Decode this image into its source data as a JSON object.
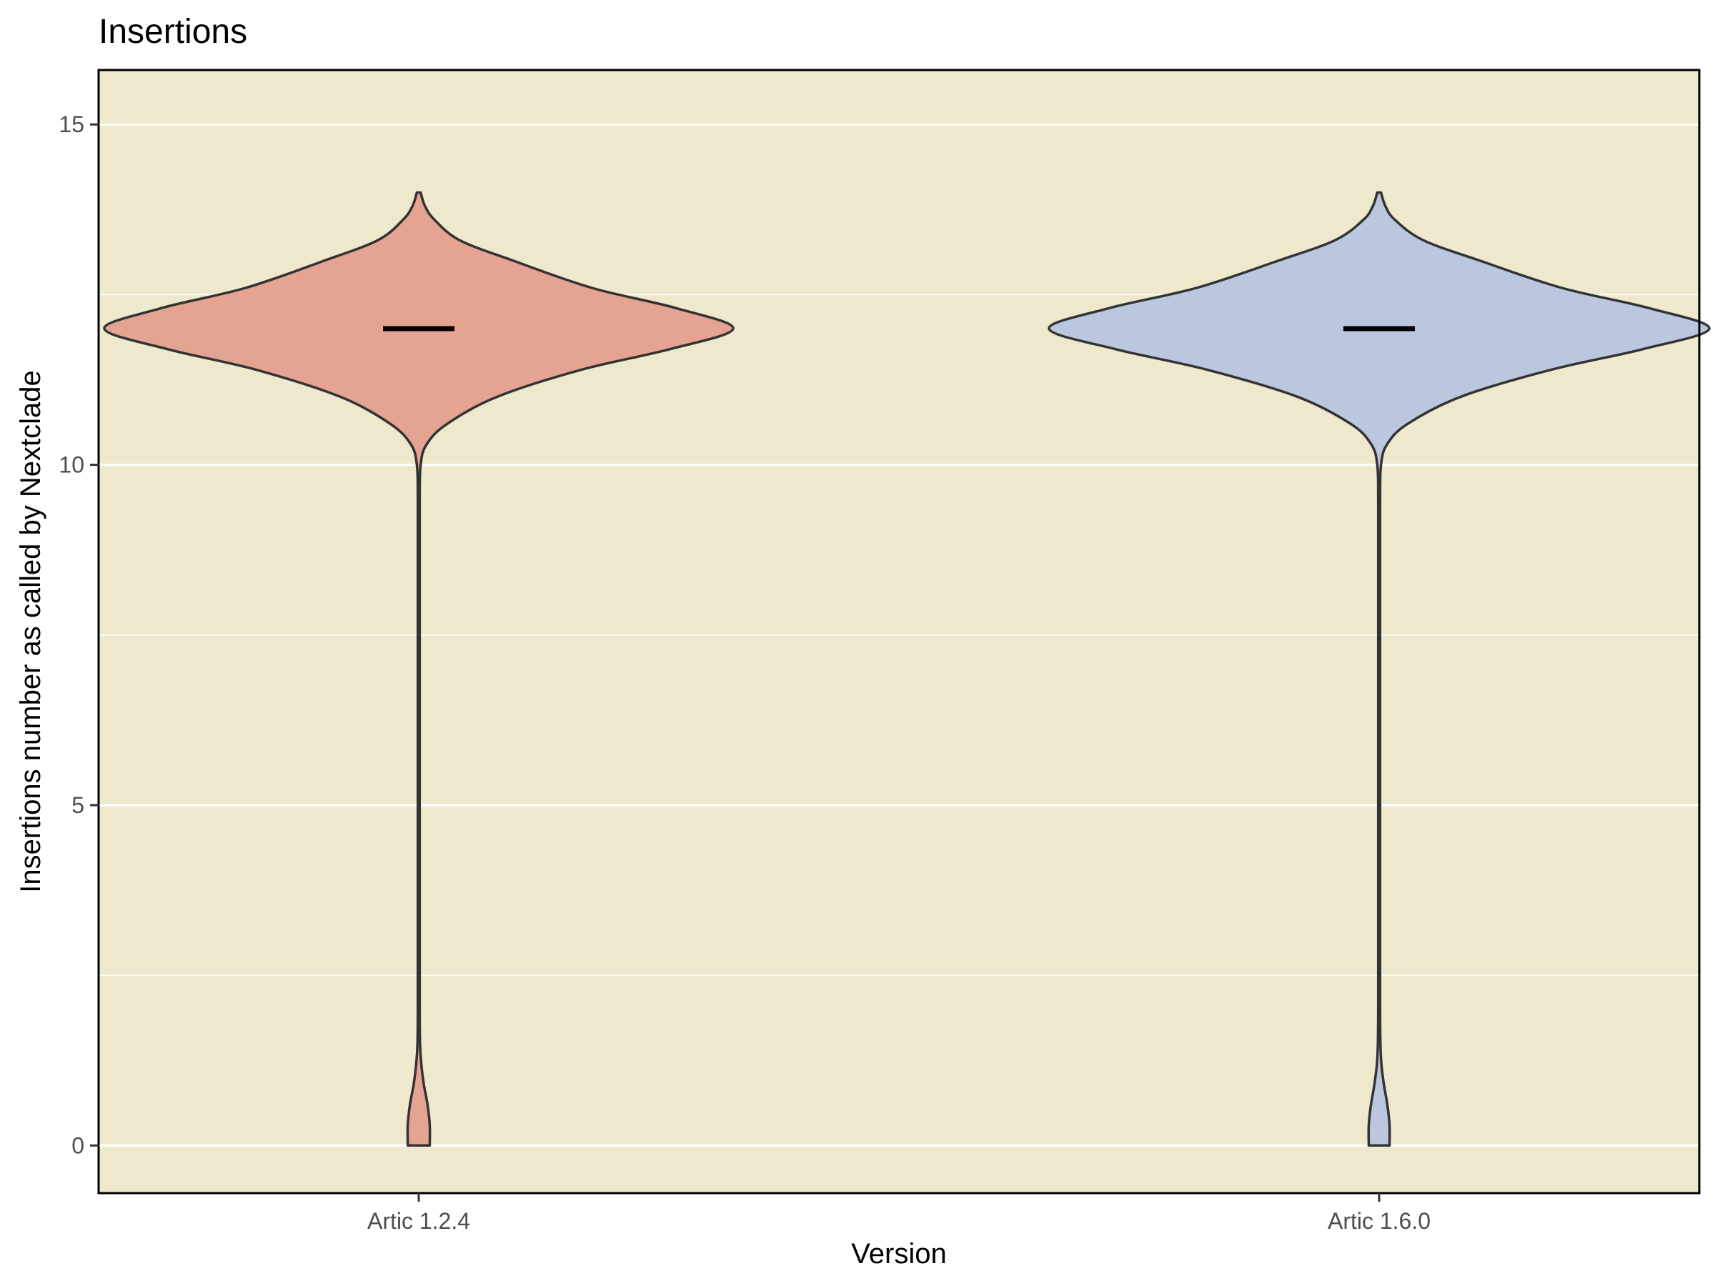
{
  "chart_data": {
    "type": "violin",
    "title": "Insertions",
    "xlabel": "Version",
    "ylabel": "Insertions number as called by Nextclade",
    "ylim": [
      -0.7,
      15.8
    ],
    "yticks": [
      0,
      5,
      10,
      15
    ],
    "ytick_labels": [
      "0",
      "5",
      "10",
      "15"
    ],
    "grid": true,
    "background_color": "#EEE8CD",
    "categories": [
      "Artic 1.2.4",
      "Artic 1.6.0"
    ],
    "series": [
      {
        "category": "Artic 1.2.4",
        "color": "#E5A391",
        "median": 12,
        "min": 0,
        "max": 14,
        "density_profile": {
          "y": [
            0,
            0.3,
            0.6,
            0.9,
            1.2,
            1.5,
            2,
            3,
            5,
            7,
            8.5,
            9.5,
            10,
            10.3,
            10.6,
            11,
            11.4,
            11.7,
            12,
            12.3,
            12.6,
            13,
            13.3,
            13.6,
            13.8,
            14
          ],
          "half_width": [
            0.035,
            0.035,
            0.028,
            0.016,
            0.008,
            0.004,
            0.003,
            0.003,
            0.003,
            0.003,
            0.003,
            0.003,
            0.006,
            0.025,
            0.09,
            0.25,
            0.52,
            0.8,
            1.0,
            0.82,
            0.55,
            0.3,
            0.13,
            0.05,
            0.02,
            0.006
          ]
        }
      },
      {
        "category": "Artic 1.6.0",
        "color": "#BBC6DF",
        "median": 12,
        "min": 0,
        "max": 14,
        "density_profile": {
          "y": [
            0,
            0.3,
            0.6,
            0.9,
            1.2,
            1.5,
            2,
            3,
            5,
            7,
            8.5,
            9.5,
            10,
            10.3,
            10.6,
            11,
            11.4,
            11.7,
            12,
            12.3,
            12.6,
            13,
            13.3,
            13.6,
            13.8,
            14
          ],
          "half_width": [
            0.033,
            0.033,
            0.026,
            0.015,
            0.007,
            0.004,
            0.003,
            0.003,
            0.003,
            0.003,
            0.003,
            0.003,
            0.006,
            0.025,
            0.09,
            0.26,
            0.55,
            0.84,
            1.05,
            0.86,
            0.58,
            0.32,
            0.14,
            0.05,
            0.02,
            0.006
          ]
        }
      }
    ]
  }
}
